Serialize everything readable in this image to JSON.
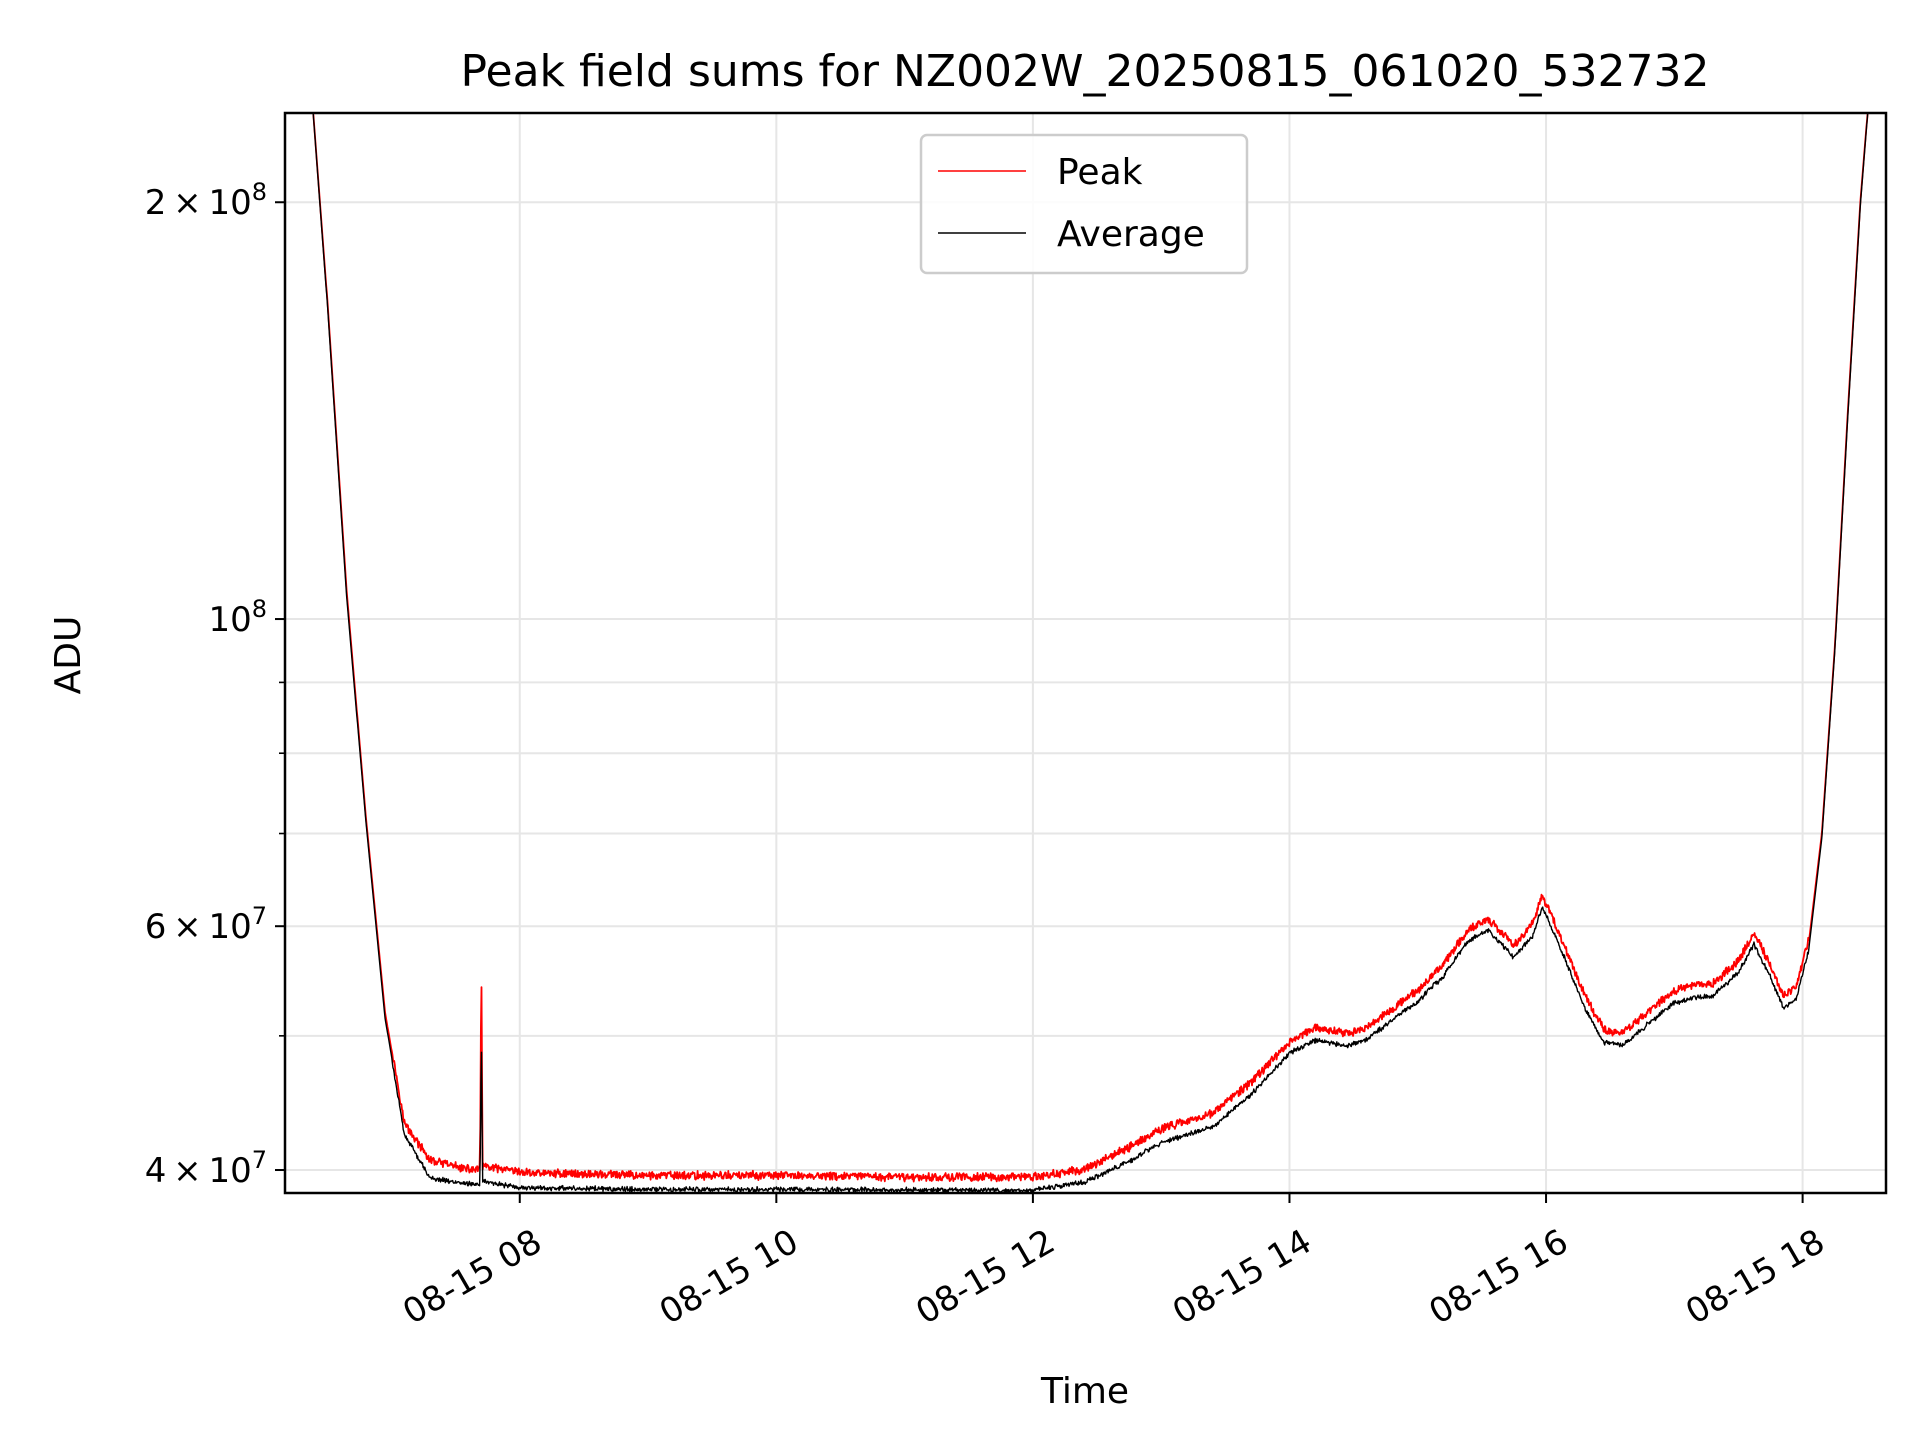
{
  "chart_data": {
    "type": "line",
    "title": "Peak field sums for NZ002W_20250815_061020_532732",
    "xlabel": "Time",
    "ylabel": "ADU",
    "yscale": "log",
    "xlim_hours": [
      6.17,
      18.65
    ],
    "ylim": [
      38500000,
      232000000
    ],
    "x_ticks": [
      {
        "value": 8,
        "label": "08-15 08"
      },
      {
        "value": 10,
        "label": "08-15 10"
      },
      {
        "value": 12,
        "label": "08-15 12"
      },
      {
        "value": 14,
        "label": "08-15 14"
      },
      {
        "value": 16,
        "label": "08-15 16"
      },
      {
        "value": 18,
        "label": "08-15 18"
      }
    ],
    "y_ticks": [
      {
        "value": 40000000,
        "mantissa": "4",
        "exponent": "7"
      },
      {
        "value": 60000000,
        "mantissa": "6",
        "exponent": "7"
      },
      {
        "value": 100000000,
        "mantissa": "",
        "exponent": "8"
      },
      {
        "value": 200000000,
        "mantissa": "2",
        "exponent": "8"
      }
    ],
    "y_minor_ticks": [
      50000000,
      70000000,
      80000000,
      90000000
    ],
    "grid": true,
    "legend_position": "top-center",
    "series": [
      {
        "name": "Peak",
        "color": "#ff0000",
        "points": [
          [
            6.35,
            260000000
          ],
          [
            6.5,
            170000000
          ],
          [
            6.65,
            105000000
          ],
          [
            6.8,
            72000000
          ],
          [
            6.95,
            52000000
          ],
          [
            7.1,
            43000000
          ],
          [
            7.3,
            40400000
          ],
          [
            7.6,
            39800000
          ],
          [
            7.69,
            39800000
          ],
          [
            7.7,
            56500000
          ],
          [
            7.71,
            40000000
          ],
          [
            8.0,
            39600000
          ],
          [
            9.0,
            39400000
          ],
          [
            10.0,
            39400000
          ],
          [
            11.0,
            39300000
          ],
          [
            12.0,
            39300000
          ],
          [
            12.4,
            39800000
          ],
          [
            12.75,
            41300000
          ],
          [
            13.0,
            42600000
          ],
          [
            13.4,
            43700000
          ],
          [
            13.7,
            46000000
          ],
          [
            14.0,
            49200000
          ],
          [
            14.2,
            50400000
          ],
          [
            14.45,
            49900000
          ],
          [
            14.6,
            50400000
          ],
          [
            14.8,
            52000000
          ],
          [
            15.0,
            53600000
          ],
          [
            15.2,
            56000000
          ],
          [
            15.4,
            59400000
          ],
          [
            15.55,
            60400000
          ],
          [
            15.75,
            57700000
          ],
          [
            15.9,
            60000000
          ],
          [
            15.97,
            62800000
          ],
          [
            16.1,
            59000000
          ],
          [
            16.3,
            53200000
          ],
          [
            16.45,
            50200000
          ],
          [
            16.6,
            50000000
          ],
          [
            16.8,
            51800000
          ],
          [
            17.0,
            53600000
          ],
          [
            17.15,
            54000000
          ],
          [
            17.3,
            54200000
          ],
          [
            17.5,
            56300000
          ],
          [
            17.62,
            59000000
          ],
          [
            17.75,
            55900000
          ],
          [
            17.85,
            53100000
          ],
          [
            17.95,
            53900000
          ],
          [
            18.05,
            58600000
          ],
          [
            18.15,
            70000000
          ],
          [
            18.25,
            95000000
          ],
          [
            18.35,
            140000000
          ],
          [
            18.45,
            200000000
          ],
          [
            18.55,
            260000000
          ]
        ]
      },
      {
        "name": "Average",
        "color": "#000000",
        "points": [
          [
            6.35,
            260000000
          ],
          [
            6.5,
            169000000
          ],
          [
            6.65,
            104000000
          ],
          [
            6.8,
            71500000
          ],
          [
            6.95,
            51500000
          ],
          [
            7.1,
            42600000
          ],
          [
            7.3,
            39600000
          ],
          [
            7.6,
            39200000
          ],
          [
            7.69,
            39200000
          ],
          [
            7.7,
            50300000
          ],
          [
            7.71,
            39400000
          ],
          [
            8.0,
            38950000
          ],
          [
            9.0,
            38850000
          ],
          [
            10.0,
            38850000
          ],
          [
            11.0,
            38800000
          ],
          [
            12.0,
            38800000
          ],
          [
            12.4,
            39300000
          ],
          [
            12.75,
            40700000
          ],
          [
            13.0,
            42000000
          ],
          [
            13.4,
            43100000
          ],
          [
            13.7,
            45500000
          ],
          [
            14.0,
            48700000
          ],
          [
            14.2,
            49800000
          ],
          [
            14.45,
            49300000
          ],
          [
            14.6,
            49800000
          ],
          [
            14.8,
            51500000
          ],
          [
            15.0,
            53100000
          ],
          [
            15.2,
            55400000
          ],
          [
            15.4,
            58800000
          ],
          [
            15.55,
            59800000
          ],
          [
            15.75,
            57100000
          ],
          [
            15.9,
            59300000
          ],
          [
            15.97,
            62200000
          ],
          [
            16.1,
            58400000
          ],
          [
            16.3,
            52600000
          ],
          [
            16.45,
            49600000
          ],
          [
            16.6,
            49400000
          ],
          [
            16.8,
            51200000
          ],
          [
            17.0,
            53000000
          ],
          [
            17.15,
            53400000
          ],
          [
            17.3,
            53600000
          ],
          [
            17.5,
            55700000
          ],
          [
            17.62,
            58400000
          ],
          [
            17.75,
            55300000
          ],
          [
            17.85,
            52500000
          ],
          [
            17.95,
            53300000
          ],
          [
            18.05,
            58000000
          ],
          [
            18.15,
            69500000
          ],
          [
            18.25,
            94500000
          ],
          [
            18.35,
            139000000
          ],
          [
            18.45,
            199000000
          ],
          [
            18.55,
            260000000
          ]
        ]
      }
    ]
  }
}
